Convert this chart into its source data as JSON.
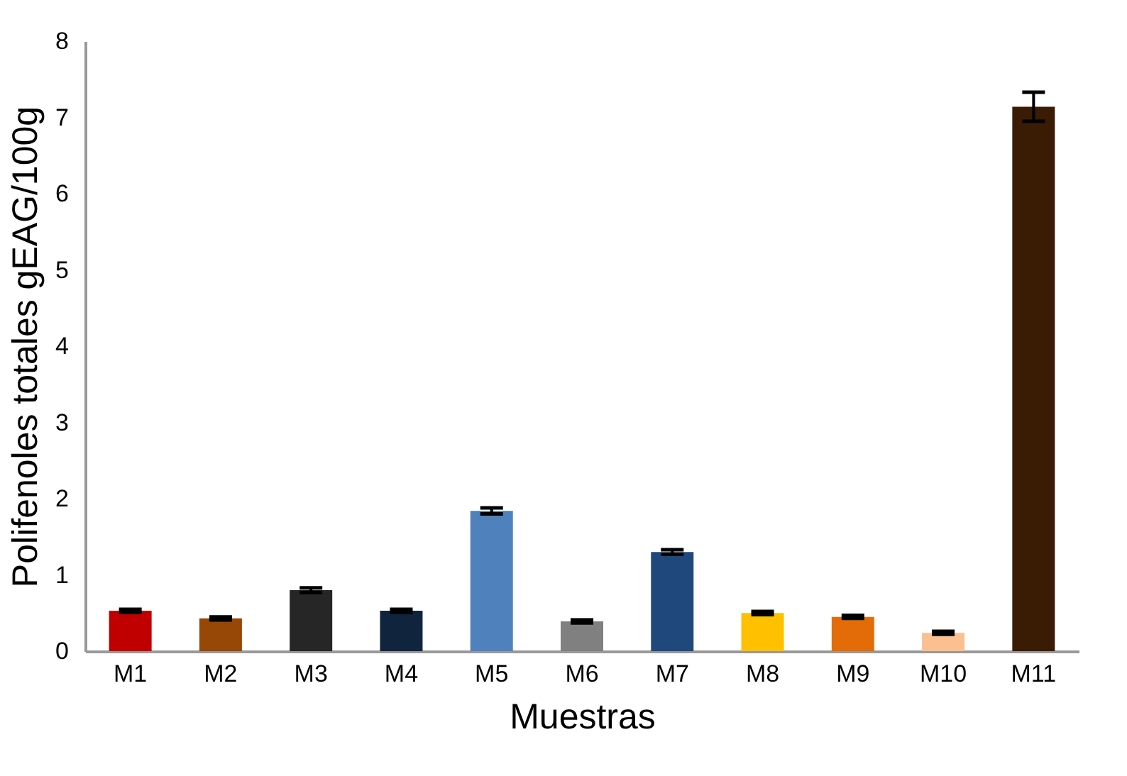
{
  "chart_data": {
    "type": "bar",
    "xlabel": "Muestras",
    "ylabel": "Polifenoles totales gEAG/100g",
    "categories": [
      "M1",
      "M2",
      "M3",
      "M4",
      "M5",
      "M6",
      "M7",
      "M8",
      "M9",
      "M10",
      "M11"
    ],
    "values": [
      0.53,
      0.43,
      0.8,
      0.53,
      1.84,
      0.39,
      1.3,
      0.5,
      0.45,
      0.24,
      7.14
    ],
    "errors": [
      0.02,
      0.02,
      0.03,
      0.02,
      0.04,
      0.02,
      0.03,
      0.02,
      0.02,
      0.02,
      0.19
    ],
    "colors": [
      "#c00000",
      "#974706",
      "#262626",
      "#10243e",
      "#4f81bd",
      "#808080",
      "#1f497d",
      "#ffc000",
      "#e36c09",
      "#fac090",
      "#3a1c04"
    ],
    "ylim": [
      0,
      8
    ],
    "yticks": [
      0,
      1,
      2,
      3,
      4,
      5,
      6,
      7,
      8
    ],
    "grid": false,
    "legend": false
  }
}
